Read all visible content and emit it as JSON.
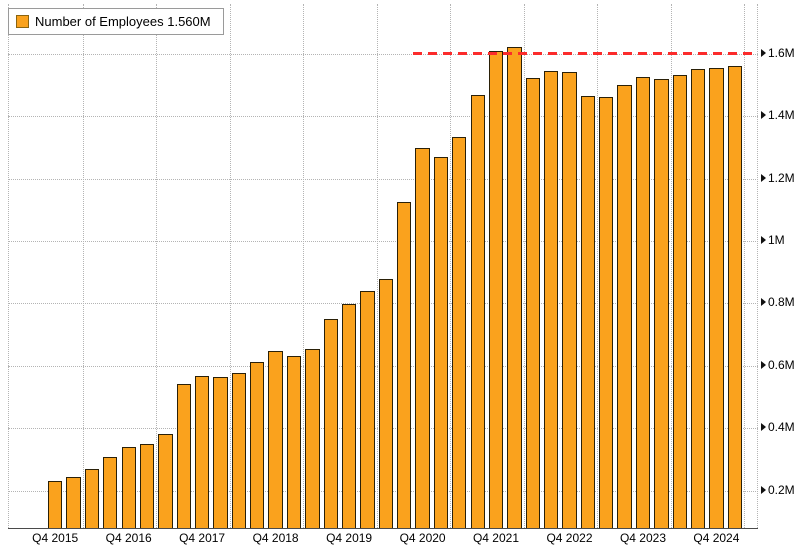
{
  "legend": {
    "label": "Number of Employees 1.560M"
  },
  "colors": {
    "bar_fill": "#FAA21D",
    "bar_outline": "#2A2008",
    "grid": "#B4B4B4",
    "reference_line": "#FB2B2B",
    "text": "#000000",
    "background": "#FFFFFF"
  },
  "chart_data": {
    "type": "bar",
    "series_name": "Number of Employees",
    "unit": "millions",
    "legend_position": "top-left",
    "grid": true,
    "latest_value_label": "1.560M",
    "x": [
      "Q4 2015",
      "Q1 2016",
      "Q2 2016",
      "Q3 2016",
      "Q4 2016",
      "Q1 2017",
      "Q2 2017",
      "Q3 2017",
      "Q4 2017",
      "Q1 2018",
      "Q2 2018",
      "Q3 2018",
      "Q4 2018",
      "Q1 2019",
      "Q2 2019",
      "Q3 2019",
      "Q4 2019",
      "Q1 2020",
      "Q2 2020",
      "Q3 2020",
      "Q4 2020",
      "Q1 2021",
      "Q2 2021",
      "Q3 2021",
      "Q4 2021",
      "Q1 2022",
      "Q2 2022",
      "Q3 2022",
      "Q4 2022",
      "Q1 2023",
      "Q2 2023",
      "Q3 2023",
      "Q4 2023",
      "Q1 2024",
      "Q2 2024",
      "Q3 2024",
      "Q4 2024",
      "Q1 2025"
    ],
    "values_millions": [
      0.231,
      0.245,
      0.269,
      0.307,
      0.341,
      0.351,
      0.382,
      0.542,
      0.566,
      0.563,
      0.576,
      0.613,
      0.648,
      0.631,
      0.653,
      0.75,
      0.798,
      0.84,
      0.877,
      1.125,
      1.298,
      1.271,
      1.335,
      1.468,
      1.608,
      1.622,
      1.523,
      1.544,
      1.541,
      1.465,
      1.461,
      1.5,
      1.525,
      1.521,
      1.532,
      1.551,
      1.556,
      1.56
    ],
    "y_ticks": [
      {
        "value": 0.2,
        "label": "0.2M"
      },
      {
        "value": 0.4,
        "label": "0.4M"
      },
      {
        "value": 0.6,
        "label": "0.6M"
      },
      {
        "value": 0.8,
        "label": "0.8M"
      },
      {
        "value": 1.0,
        "label": "1M"
      },
      {
        "value": 1.2,
        "label": "1.2M"
      },
      {
        "value": 1.4,
        "label": "1.4M"
      },
      {
        "value": 1.6,
        "label": "1.6M"
      }
    ],
    "x_ticks": [
      {
        "index": 0,
        "label": "Q4 2015"
      },
      {
        "index": 4,
        "label": "Q4 2016"
      },
      {
        "index": 8,
        "label": "Q4 2017"
      },
      {
        "index": 12,
        "label": "Q4 2018"
      },
      {
        "index": 16,
        "label": "Q4 2019"
      },
      {
        "index": 20,
        "label": "Q4 2020"
      },
      {
        "index": 24,
        "label": "Q4 2021"
      },
      {
        "index": 28,
        "label": "Q4 2022"
      },
      {
        "index": 32,
        "label": "Q4 2023"
      },
      {
        "index": 36,
        "label": "Q4 2024"
      }
    ],
    "ylim": [
      0.08,
      1.76
    ],
    "reference_line": {
      "value": 1.6,
      "style": "dashed",
      "color": "#FB2B2B",
      "starts_at": "Q4 2020"
    }
  }
}
